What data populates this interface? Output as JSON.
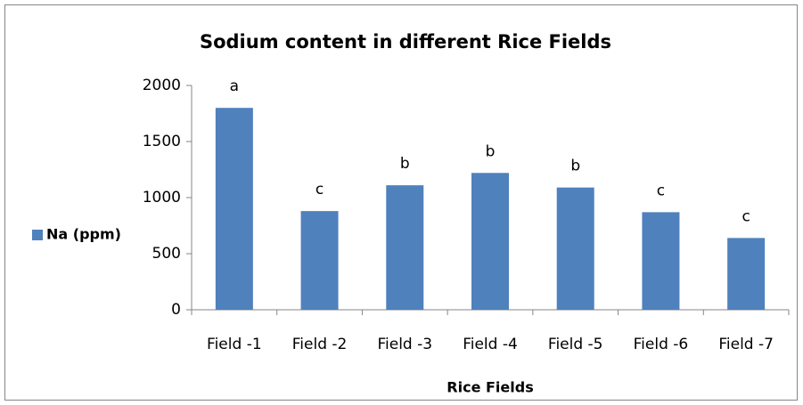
{
  "chart_data": {
    "type": "bar",
    "title": "Sodium content in different Rice Fields",
    "x_label": "Rice Fields",
    "categories": [
      "Field -1",
      "Field -2",
      "Field -3",
      "Field -4",
      "Field -5",
      "Field -6",
      "Field -7"
    ],
    "series": [
      {
        "name": "Na (ppm)",
        "color": "#4f81bd",
        "values": [
          1800,
          880,
          1110,
          1220,
          1090,
          870,
          640
        ]
      }
    ],
    "annotations": [
      "a",
      "c",
      "b",
      "b",
      "b",
      "c",
      "c"
    ],
    "ylim": [
      0,
      2000
    ],
    "yticks": [
      0,
      500,
      1000,
      1500,
      2000
    ],
    "grid": false,
    "legend": "left"
  }
}
